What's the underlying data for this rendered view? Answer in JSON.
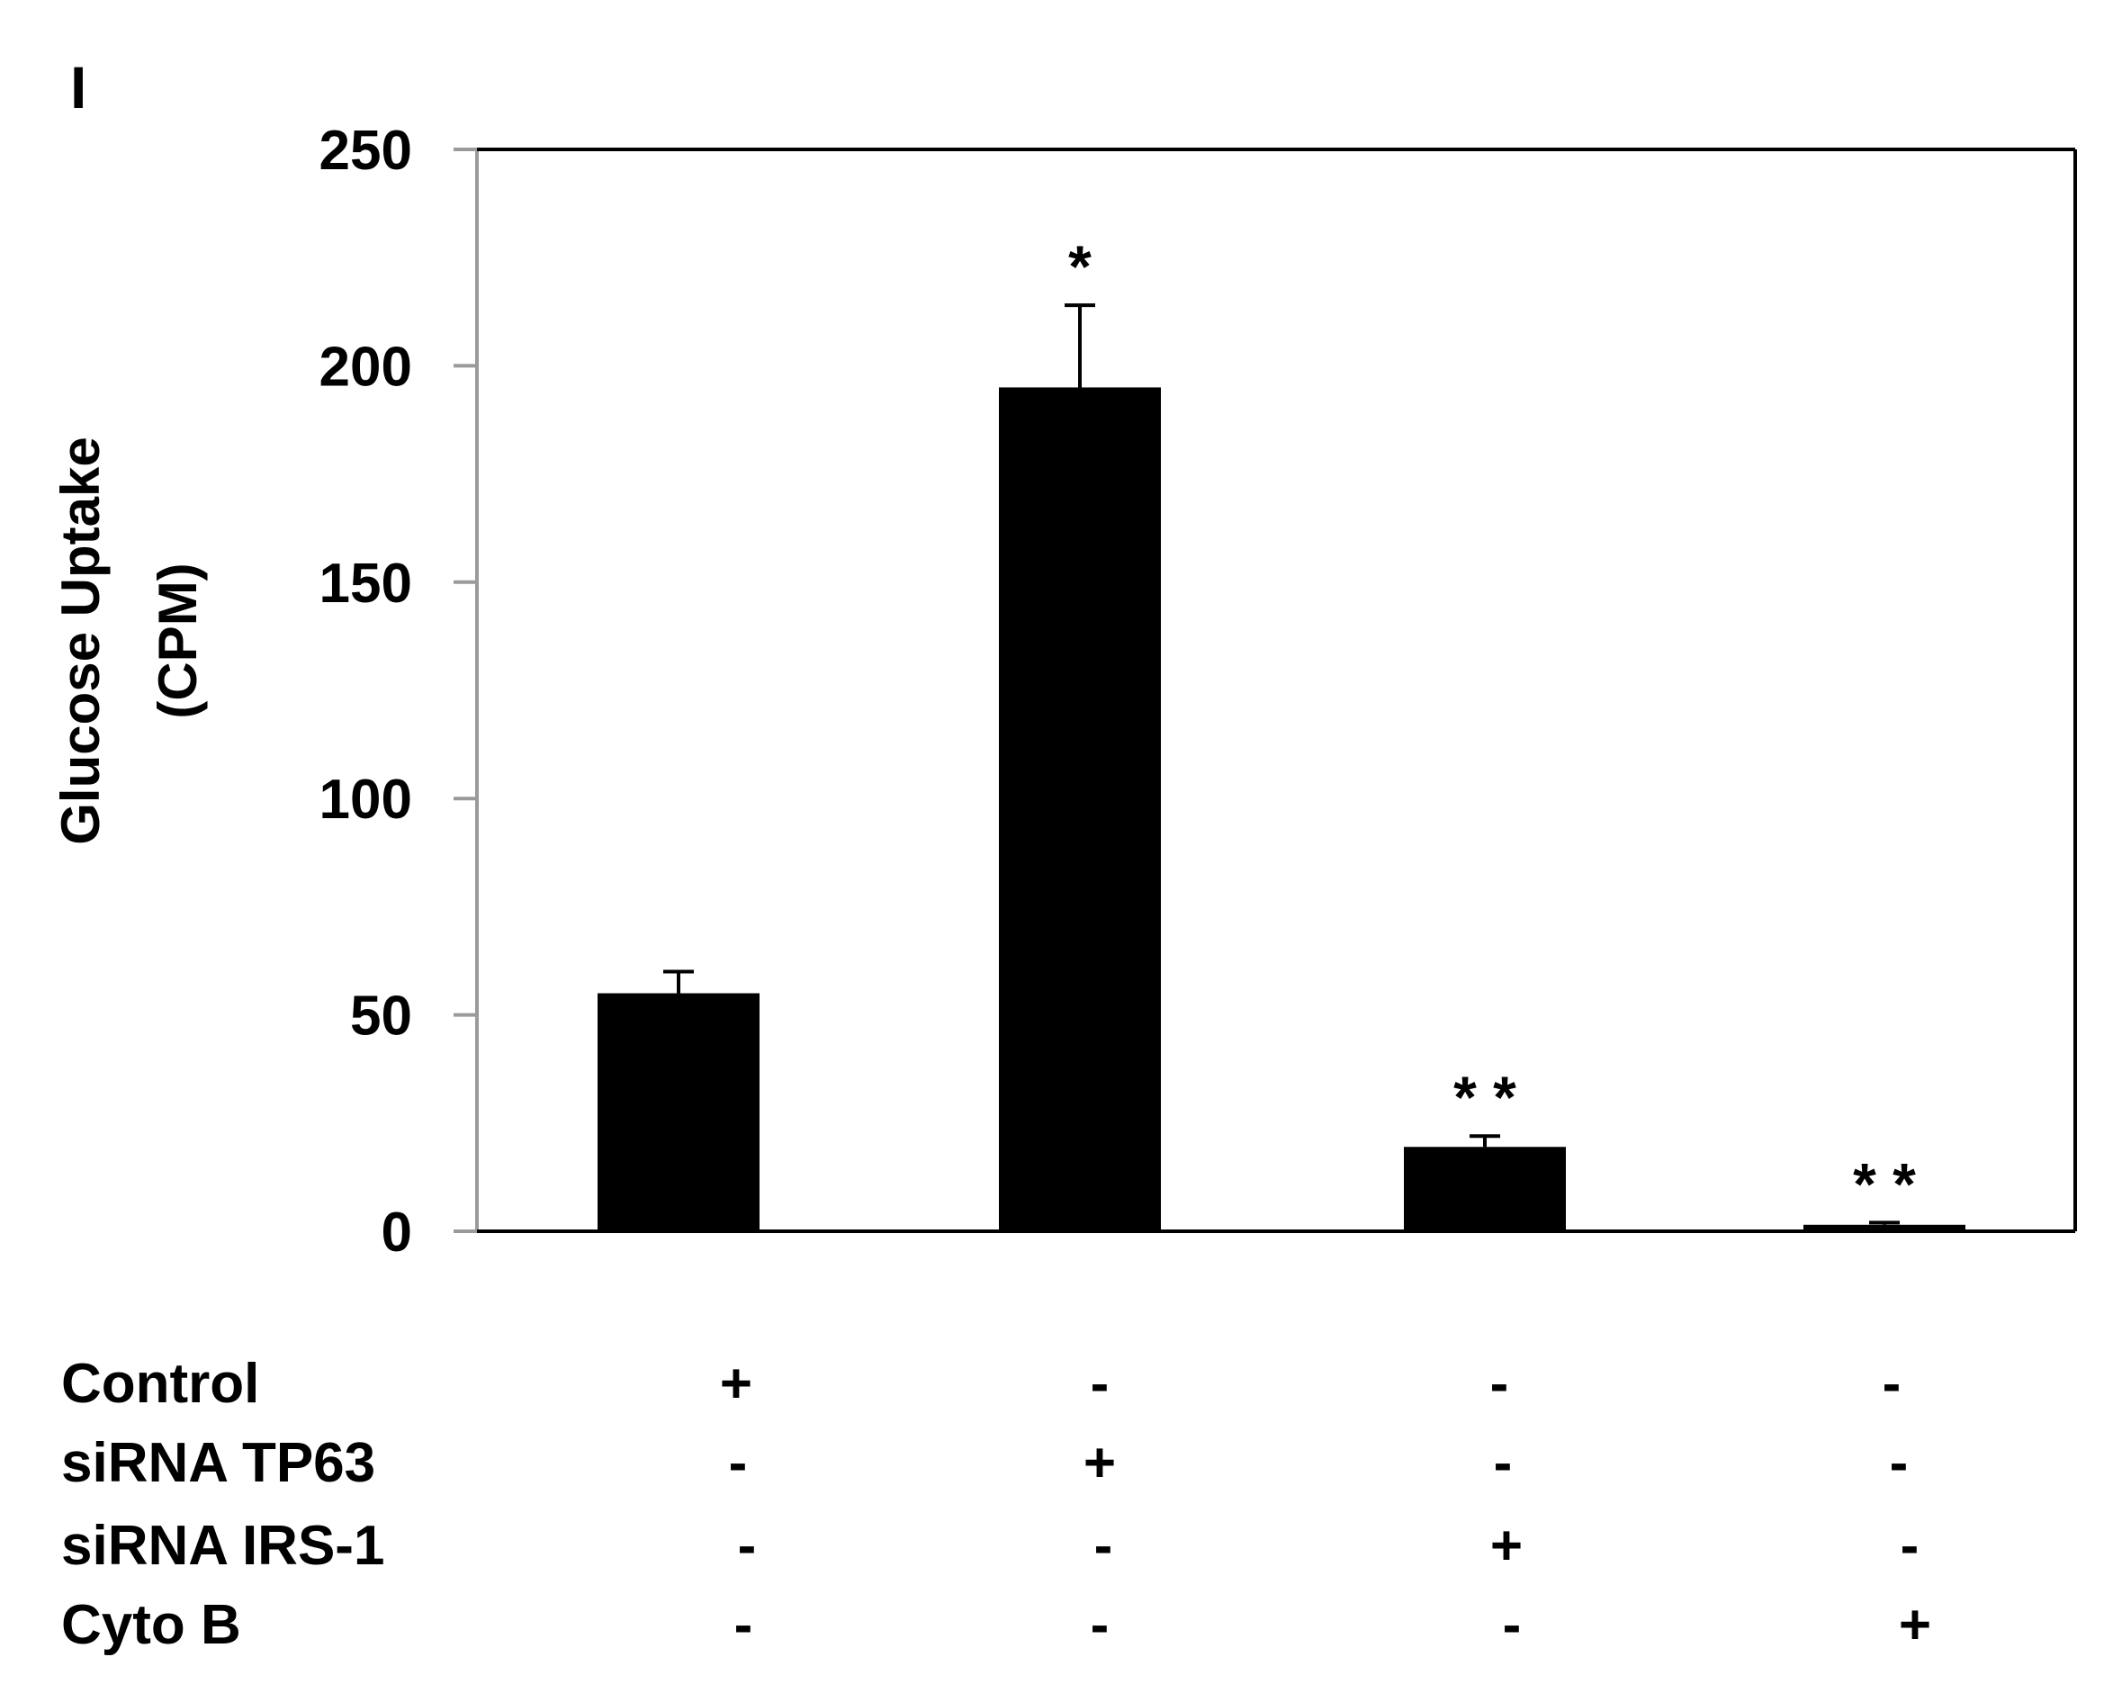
{
  "panel_label": "I",
  "chart_data": {
    "type": "bar",
    "title": "",
    "xlabel": "",
    "ylabel_line1": "Glucose Uptake",
    "ylabel_line2": "(CPM)",
    "ylim": [
      0,
      250
    ],
    "yticks": [
      "0",
      "50",
      "100",
      "150",
      "200",
      "250"
    ],
    "ytick_values": [
      0,
      50,
      100,
      150,
      200,
      250
    ],
    "categories": [
      "",
      "",
      "",
      ""
    ],
    "values": [
      55,
      195,
      19.5,
      1.5
    ],
    "errors": [
      5,
      19,
      2.5,
      0.5
    ],
    "significance": [
      "",
      "*",
      "* *",
      "* *"
    ],
    "bar_color": "#000000",
    "grid": false
  },
  "conditions": {
    "rows": [
      {
        "label": "Control",
        "marks": [
          "+",
          "-",
          "-",
          "-"
        ]
      },
      {
        "label": "siRNA TP63",
        "marks": [
          "-",
          "+",
          "-",
          "-"
        ]
      },
      {
        "label": "siRNA IRS-1",
        "marks": [
          "-",
          "-",
          "+",
          "-"
        ]
      },
      {
        "label": "Cyto B",
        "marks": [
          "-",
          "-",
          "-",
          "+"
        ]
      }
    ]
  }
}
